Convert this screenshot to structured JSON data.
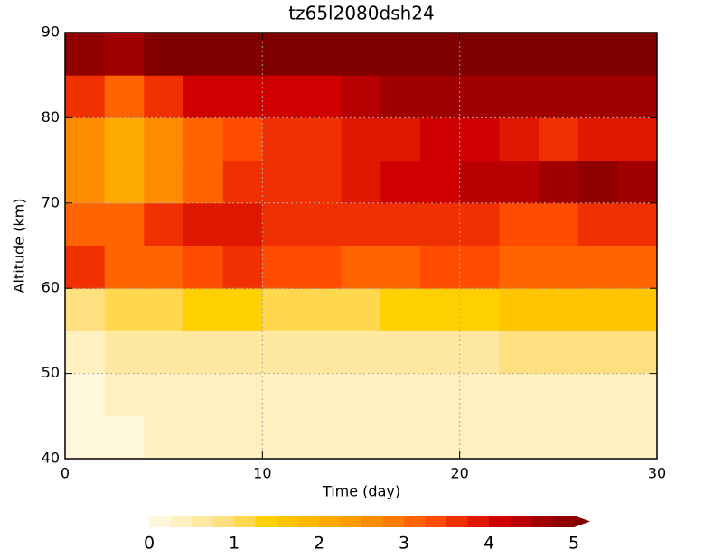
{
  "chart_data": {
    "type": "heatmap",
    "title": "tz65l2080dsh24",
    "x_label": "Time (day)",
    "y_label": "Altitude (km)",
    "x": [
      1,
      3,
      5,
      7,
      9,
      11,
      13,
      15,
      17,
      19,
      21,
      23,
      25,
      27,
      29
    ],
    "y": [
      42.5,
      47.5,
      52.5,
      57.5,
      62.5,
      67.5,
      72.5,
      77.5,
      82.5,
      87.5
    ],
    "z": [
      [
        0.1,
        0.2,
        0.3,
        0.3,
        0.3,
        0.3,
        0.3,
        0.3,
        0.3,
        0.3,
        0.3,
        0.3,
        0.3,
        0.3,
        0.3
      ],
      [
        0.1,
        0.3,
        0.4,
        0.4,
        0.4,
        0.4,
        0.4,
        0.4,
        0.4,
        0.4,
        0.4,
        0.4,
        0.4,
        0.4,
        0.4
      ],
      [
        0.3,
        0.5,
        0.5,
        0.6,
        0.6,
        0.6,
        0.6,
        0.6,
        0.6,
        0.7,
        0.7,
        0.8,
        0.9,
        0.9,
        0.8
      ],
      [
        0.8,
        1.0,
        1.2,
        1.3,
        1.3,
        1.2,
        1.2,
        1.2,
        1.3,
        1.4,
        1.4,
        1.5,
        1.6,
        1.6,
        1.5
      ],
      [
        3.5,
        3.0,
        3.2,
        3.4,
        3.5,
        3.4,
        3.3,
        3.2,
        3.2,
        3.3,
        3.3,
        3.2,
        3.2,
        3.2,
        3.2
      ],
      [
        3.0,
        3.0,
        3.5,
        3.8,
        3.8,
        3.6,
        3.5,
        3.5,
        3.6,
        3.6,
        3.5,
        3.4,
        3.4,
        3.6,
        3.5
      ],
      [
        2.5,
        2.0,
        2.5,
        3.0,
        3.5,
        3.5,
        3.6,
        3.8,
        4.0,
        4.2,
        4.3,
        4.4,
        4.6,
        4.8,
        4.6
      ],
      [
        2.5,
        2.0,
        2.5,
        3.2,
        3.4,
        3.5,
        3.6,
        3.8,
        3.8,
        4.0,
        4.0,
        3.8,
        3.6,
        3.8,
        3.8
      ],
      [
        3.5,
        3.0,
        3.5,
        4.0,
        4.2,
        4.2,
        4.2,
        4.3,
        4.5,
        4.6,
        4.7,
        4.6,
        4.6,
        4.6,
        4.5
      ],
      [
        4.8,
        4.5,
        5.0,
        5.2,
        5.2,
        5.2,
        5.2,
        5.2,
        5.2,
        5.2,
        5.3,
        5.2,
        5.0,
        5.2,
        5.2
      ]
    ],
    "xlim": [
      0,
      30
    ],
    "xticks": [
      0,
      10,
      20,
      30
    ],
    "ylim": [
      40,
      90
    ],
    "yticks": [
      40,
      50,
      60,
      70,
      80,
      90
    ],
    "zlim": [
      0,
      5
    ],
    "zticks": [
      0,
      1,
      2,
      3,
      4,
      5
    ],
    "grid": true,
    "colors": [
      "#fff7dc",
      "#fff0c0",
      "#ffe8a0",
      "#ffe080",
      "#ffd850",
      "#ffd000",
      "#ffc400",
      "#ffb800",
      "#ffaa00",
      "#ff9c00",
      "#ff8c00",
      "#ff7a00",
      "#ff6400",
      "#ff4c00",
      "#f03000",
      "#e01800",
      "#d00000",
      "#b80000",
      "#a00000",
      "#900000",
      "#800000"
    ]
  }
}
